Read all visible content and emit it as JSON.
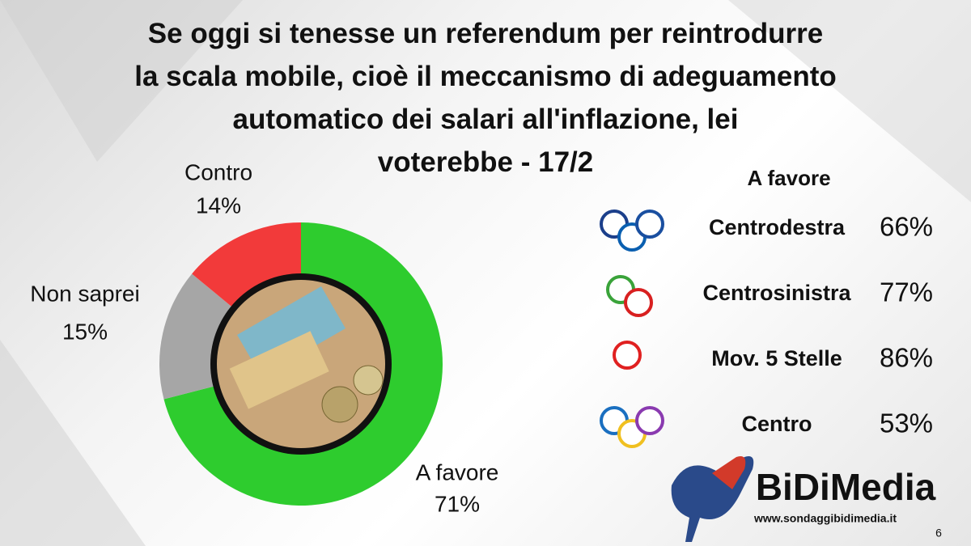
{
  "chart_data": {
    "type": "pie",
    "donut": true,
    "title": "Se oggi si tenesse un referendum per reintrodurre la scala mobile, cioè il meccanismo di adeguamento automatico dei salari all'inflazione, lei voterebbe - 17/2",
    "categories": [
      "A favore",
      "Non saprei",
      "Contro"
    ],
    "values": [
      71,
      15,
      14
    ],
    "value_labels": [
      "71%",
      "15%",
      "14%"
    ],
    "colors": [
      "#2ecc2e",
      "#a6a6a6",
      "#f23a3a"
    ]
  },
  "breakdown": {
    "title": "A favore",
    "categories": [
      "Centrodestra",
      "Centrosinistra",
      "Mov. 5 Stelle",
      "Centro"
    ],
    "values": [
      66,
      77,
      86,
      53
    ],
    "value_labels": [
      "66%",
      "77%",
      "86%",
      "53%"
    ]
  },
  "logo": {
    "name": "BiDiMedia",
    "url": "www.sondaggibidimedia.it"
  },
  "page_number": "6"
}
